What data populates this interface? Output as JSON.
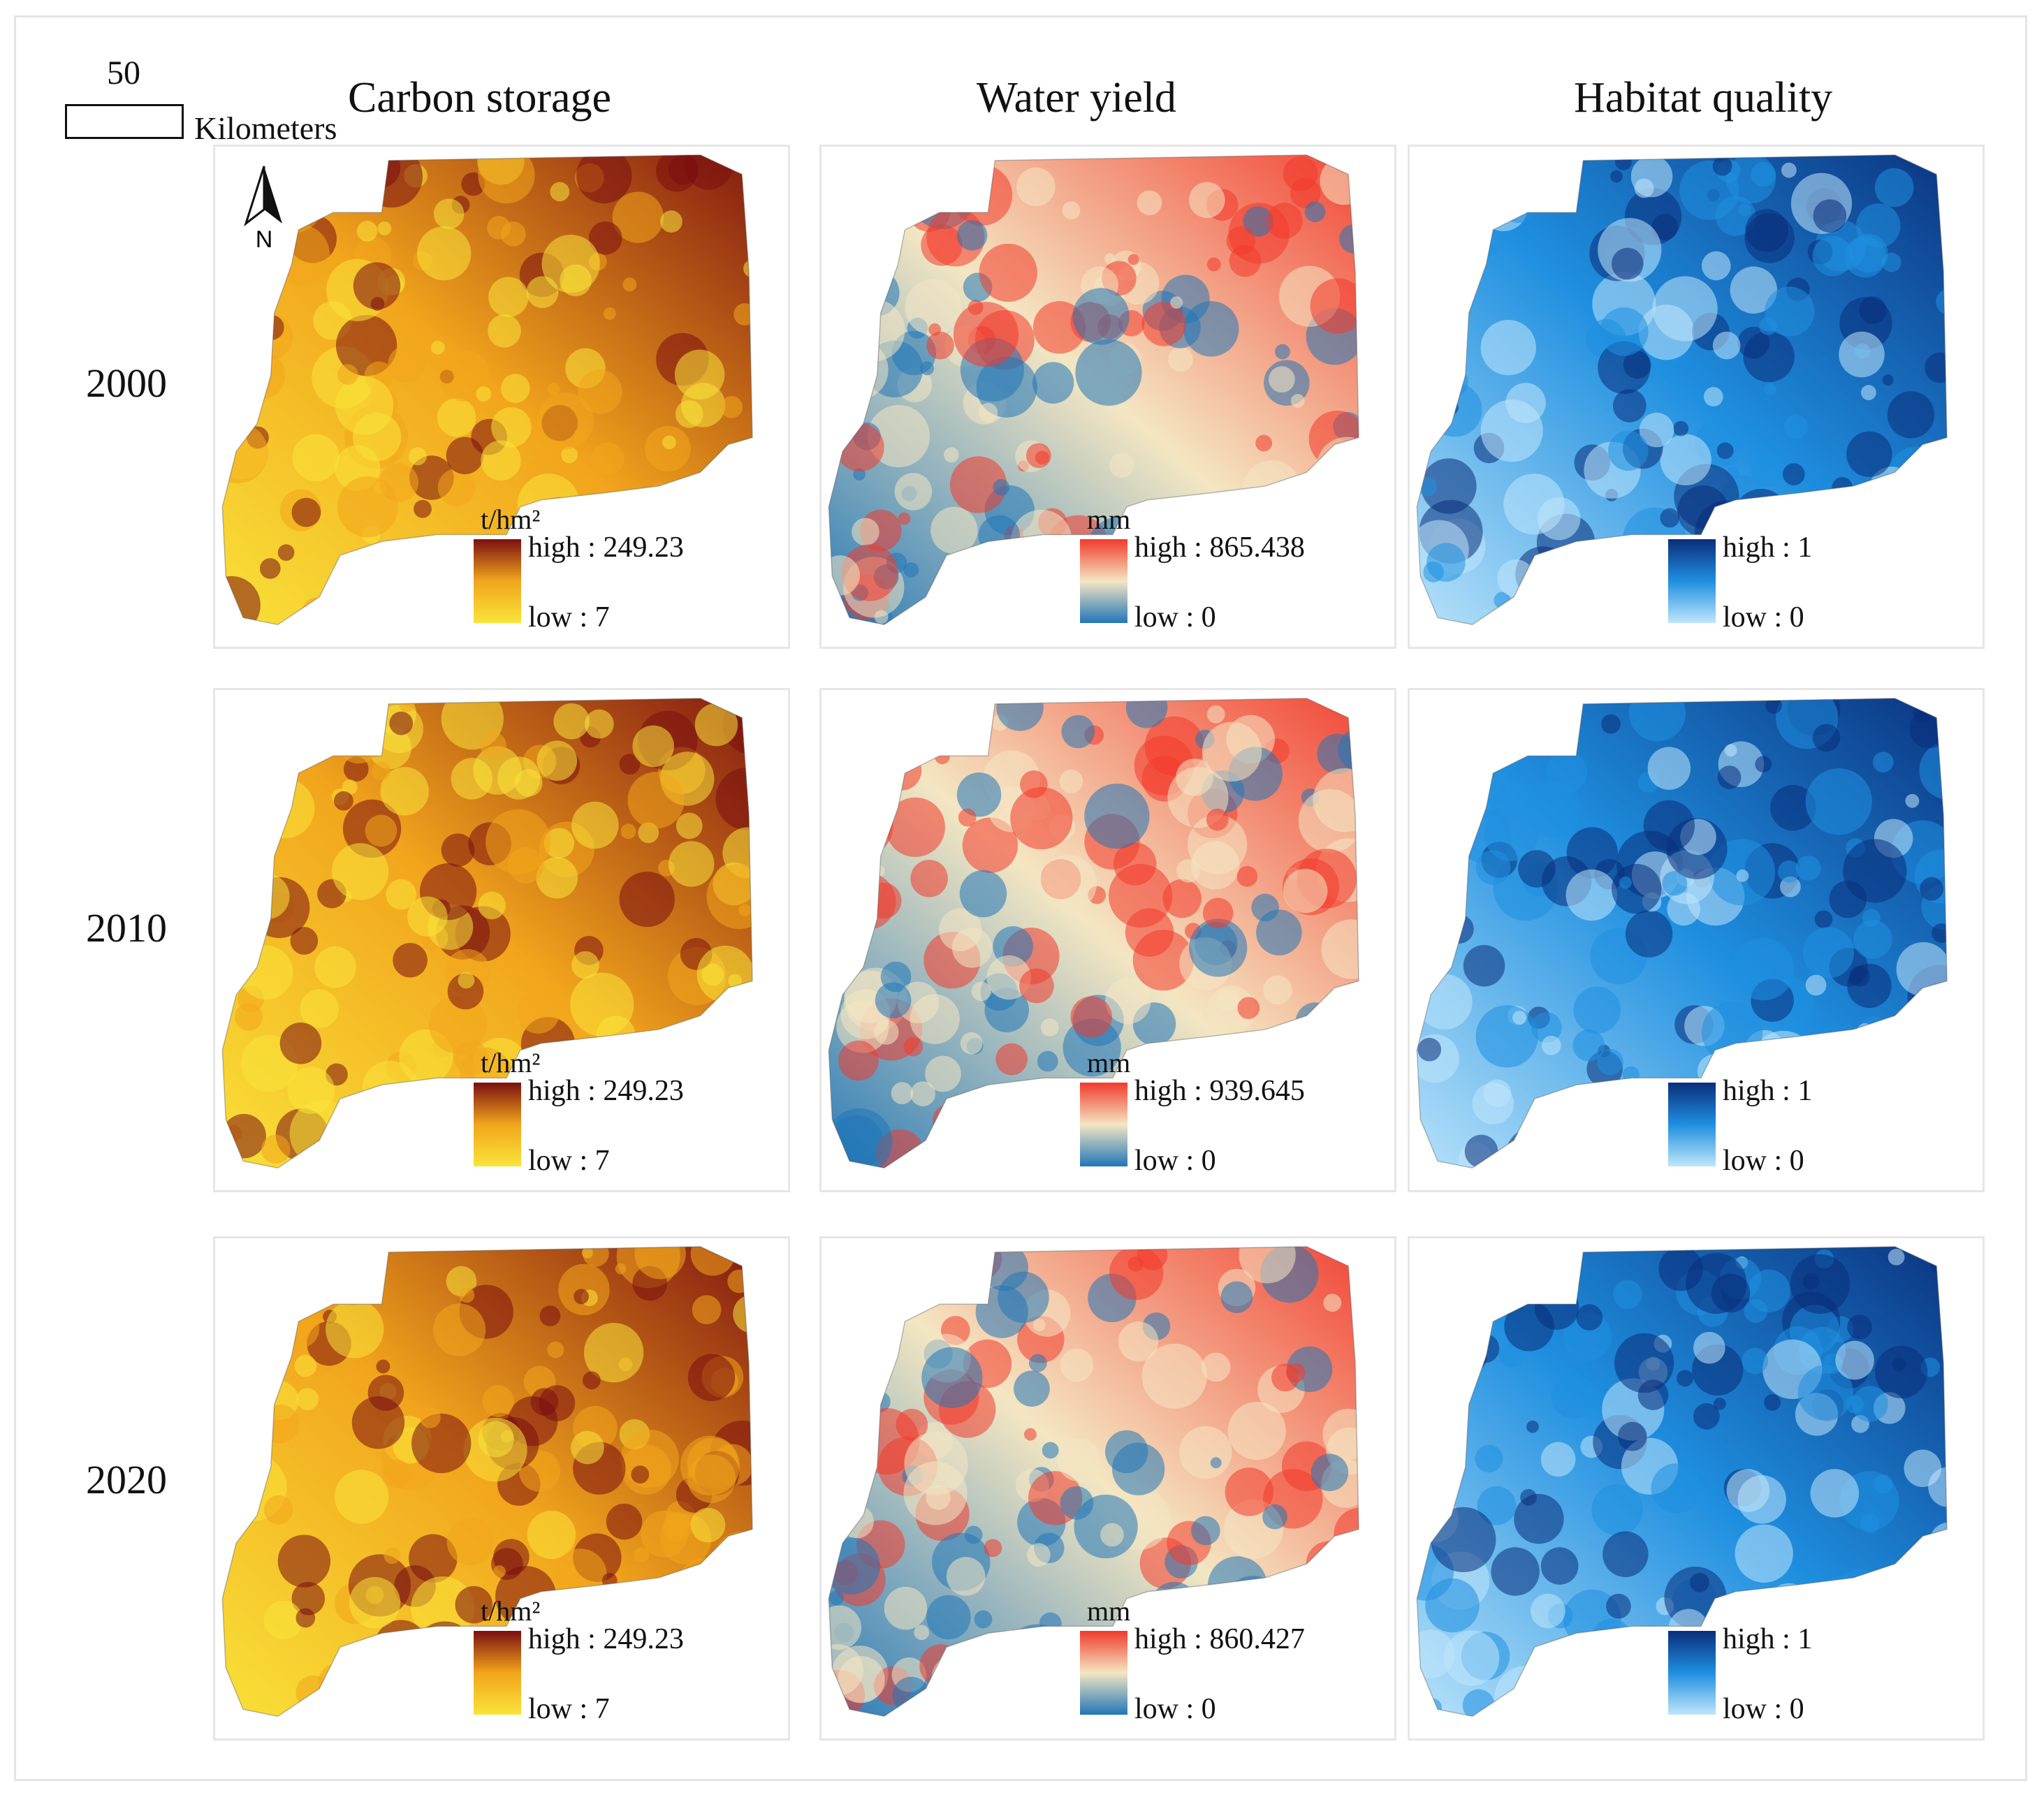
{
  "scale_bar": {
    "distance": "50",
    "unit": "Kilometers"
  },
  "north_arrow": {
    "label": "N",
    "icon": "north-arrow-icon"
  },
  "columns": [
    {
      "title": "Carbon storage",
      "unit": "t/hm²",
      "ramp": [
        "#f9e43a",
        "#f2a51c",
        "#7a0f10"
      ]
    },
    {
      "title": "Water yield",
      "unit": "mm",
      "ramp": [
        "#2176b8",
        "#f4e6c2",
        "#f23a2c"
      ]
    },
    {
      "title": "Habitat quality",
      "unit": "",
      "ramp": [
        "#bfe6fb",
        "#1f8fe0",
        "#0a2e7a"
      ]
    }
  ],
  "rows": [
    {
      "year": "2000",
      "legends": [
        {
          "high": "high : 249.23",
          "low": "low : 7"
        },
        {
          "high": "high : 865.438",
          "low": "low : 0"
        },
        {
          "high": "high : 1",
          "low": "low : 0"
        }
      ]
    },
    {
      "year": "2010",
      "legends": [
        {
          "high": "high : 249.23",
          "low": "low : 7"
        },
        {
          "high": "high : 939.645",
          "low": "low : 0"
        },
        {
          "high": "high : 1",
          "low": "low : 0"
        }
      ]
    },
    {
      "year": "2020",
      "legends": [
        {
          "high": "high : 249.23",
          "low": "low : 7"
        },
        {
          "high": "high : 860.427",
          "low": "low : 0"
        },
        {
          "high": "high : 1",
          "low": "low : 0"
        }
      ]
    }
  ]
}
